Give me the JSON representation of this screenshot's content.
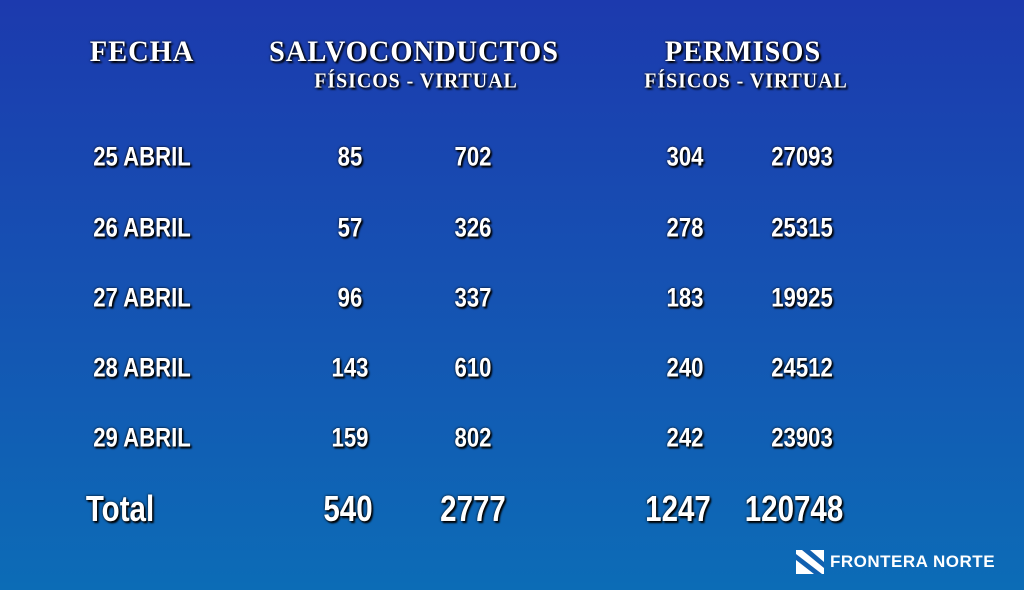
{
  "headers": {
    "fecha": "FECHA",
    "salvo": "SALVOCONDUCTOS",
    "salvo_sub": "FÍSICOS  - VIRTUAL",
    "permisos": "PERMISOS",
    "permisos_sub": "FÍSICOS  - VIRTUAL"
  },
  "rows": [
    {
      "date": "25 ABRIL",
      "sf": "85",
      "sv": "702",
      "pf": "304",
      "pv": "27093"
    },
    {
      "date": "26 ABRIL",
      "sf": "57",
      "sv": "326",
      "pf": "278",
      "pv": "25315"
    },
    {
      "date": "27 ABRIL",
      "sf": "96",
      "sv": "337",
      "pf": "183",
      "pv": "19925"
    },
    {
      "date": "28 ABRIL",
      "sf": "143",
      "sv": "610",
      "pf": "240",
      "pv": "24512"
    },
    {
      "date": "29 ABRIL",
      "sf": "159",
      "sv": "802",
      "pf": "242",
      "pv": "23903"
    }
  ],
  "total": {
    "label": "Total",
    "sf": "540",
    "sv": "2777",
    "pf": "1247",
    "pv": "120748"
  },
  "logo": {
    "text": "FRONTERA NORTE",
    "icon": "frontera-norte-logo-icon"
  },
  "colors": {
    "bg_top": "#1c3aae",
    "bg_bottom": "#0c6cb6",
    "text": "#ffffff"
  }
}
